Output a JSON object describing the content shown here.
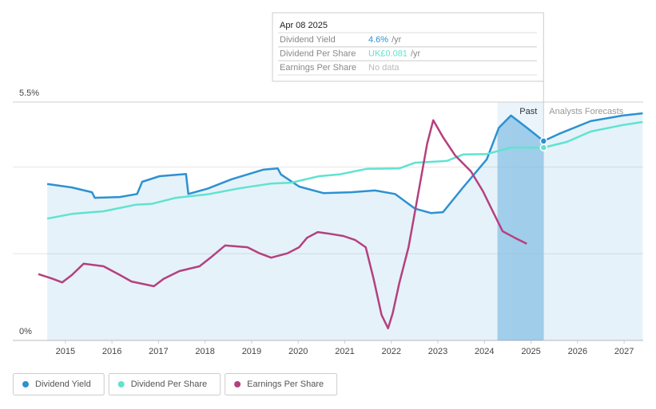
{
  "chart_data": {
    "type": "line",
    "xlim": [
      2013.87,
      2027.41
    ],
    "xticks": [
      2015,
      2016,
      2017,
      2018,
      2019,
      2020,
      2021,
      2022,
      2023,
      2024,
      2025,
      2026,
      2027
    ],
    "ylim": [
      0,
      5.5
    ],
    "yticks": [
      {
        "value": 0,
        "label": "0%"
      },
      {
        "value": 5.5,
        "label": "5.5%"
      }
    ],
    "grid_lines": [
      2,
      4
    ],
    "regions": [
      {
        "label": "Past",
        "range": [
          2024.28,
          2025.27
        ]
      },
      {
        "label": "Analysts Forecasts",
        "range": [
          2025.27,
          2027.41
        ]
      }
    ],
    "series": [
      {
        "name": "Dividend Yield",
        "color": "#2d91d2",
        "area": true,
        "x": [
          2014.61,
          2015.14,
          2015.57,
          2015.63,
          2016.17,
          2016.54,
          2016.65,
          2017.02,
          2017.59,
          2017.64,
          2018.05,
          2018.57,
          2019.25,
          2019.56,
          2019.63,
          2020.02,
          2020.54,
          2021.14,
          2021.65,
          2022.08,
          2022.51,
          2022.85,
          2023.11,
          2023.54,
          2024.05,
          2024.31,
          2024.57,
          2024.91,
          2025.27,
          2025.59,
          2026.28,
          2026.97,
          2027.4
        ],
        "values": [
          3.61,
          3.53,
          3.42,
          3.29,
          3.31,
          3.38,
          3.66,
          3.79,
          3.84,
          3.38,
          3.5,
          3.72,
          3.94,
          3.97,
          3.83,
          3.55,
          3.4,
          3.42,
          3.46,
          3.38,
          3.04,
          2.94,
          2.96,
          3.53,
          4.18,
          4.91,
          5.19,
          4.91,
          4.6,
          4.76,
          5.06,
          5.19,
          5.24
        ]
      },
      {
        "name": "Dividend Per Share",
        "color": "#5fe3d0",
        "x": [
          2014.61,
          2015.14,
          2015.82,
          2016.51,
          2016.85,
          2017.37,
          2018.05,
          2018.74,
          2019.42,
          2019.85,
          2020.45,
          2020.88,
          2021.48,
          2022.17,
          2022.51,
          2023.19,
          2023.54,
          2024.05,
          2024.57,
          2025.27,
          2025.77,
          2026.28,
          2026.97,
          2027.4
        ],
        "values": [
          2.81,
          2.92,
          2.98,
          3.13,
          3.15,
          3.29,
          3.37,
          3.51,
          3.62,
          3.64,
          3.79,
          3.83,
          3.96,
          3.97,
          4.1,
          4.14,
          4.29,
          4.3,
          4.45,
          4.45,
          4.58,
          4.82,
          4.97,
          5.04
        ]
      },
      {
        "name": "Earnings Per Share",
        "color": "#b5407f",
        "x": [
          2014.42,
          2014.71,
          2014.93,
          2015.14,
          2015.39,
          2015.82,
          2016.17,
          2016.42,
          2016.9,
          2017.11,
          2017.45,
          2017.88,
          2018.14,
          2018.43,
          2018.91,
          2019.17,
          2019.42,
          2019.77,
          2020.02,
          2020.19,
          2020.42,
          2020.62,
          2020.97,
          2021.22,
          2021.45,
          2021.62,
          2021.79,
          2021.93,
          2022.03,
          2022.17,
          2022.37,
          2022.54,
          2022.77,
          2022.9,
          2023.11,
          2023.37,
          2023.71,
          2023.97,
          2024.22,
          2024.39,
          2024.65,
          2024.91
        ],
        "values": [
          1.53,
          1.43,
          1.34,
          1.51,
          1.77,
          1.71,
          1.51,
          1.36,
          1.25,
          1.42,
          1.6,
          1.71,
          1.93,
          2.19,
          2.15,
          2.01,
          1.91,
          2.01,
          2.15,
          2.37,
          2.5,
          2.47,
          2.41,
          2.32,
          2.15,
          1.42,
          0.59,
          0.28,
          0.63,
          1.32,
          2.15,
          3.16,
          4.54,
          5.08,
          4.69,
          4.27,
          3.9,
          3.44,
          2.89,
          2.52,
          2.37,
          2.23
        ]
      }
    ],
    "tooltip": {
      "date": "Apr 08 2025",
      "rows": [
        {
          "label": "Dividend Yield",
          "value": "4.6%",
          "unit": "/yr"
        },
        {
          "label": "Dividend Per Share",
          "value": "UK£0.081",
          "unit": "/yr"
        },
        {
          "label": "Earnings Per Share",
          "value": "No data"
        }
      ]
    }
  }
}
